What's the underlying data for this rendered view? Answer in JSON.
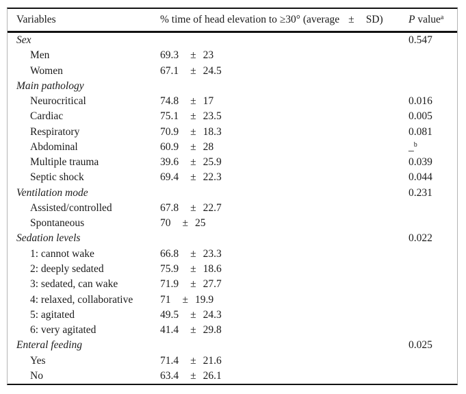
{
  "table": {
    "pm_symbol": "±",
    "header": {
      "variables": "Variables",
      "value_col": "% time of head elevation to ≥30° (average",
      "pm": "±",
      "sd_close": "SD)",
      "p_label_italic": "P",
      "p_label_rest": "value",
      "p_sup": "a"
    },
    "rows": [
      {
        "label": "Sex",
        "type": "category",
        "p": "0.547"
      },
      {
        "label": "Men",
        "type": "item",
        "mean": "69.3",
        "sd": "23"
      },
      {
        "label": "Women",
        "type": "item",
        "mean": "67.1",
        "sd": "24.5"
      },
      {
        "label": "Main pathology",
        "type": "category"
      },
      {
        "label": "Neurocritical",
        "type": "item",
        "mean": "74.8",
        "sd": "17",
        "p": "0.016"
      },
      {
        "label": "Cardiac",
        "type": "item",
        "mean": "75.1",
        "sd": "23.5",
        "p": "0.005"
      },
      {
        "label": "Respiratory",
        "type": "item",
        "mean": "70.9",
        "sd": "18.3",
        "p": "0.081"
      },
      {
        "label": "Abdominal",
        "type": "item",
        "mean": "60.9",
        "sd": "28",
        "p": "_",
        "p_sup": "b"
      },
      {
        "label": "Multiple trauma",
        "type": "item",
        "mean": "39.6",
        "sd": "25.9",
        "p": "0.039"
      },
      {
        "label": "Septic shock",
        "type": "item",
        "mean": "69.4",
        "sd": "22.3",
        "p": "0.044"
      },
      {
        "label": "Ventilation mode",
        "type": "category",
        "p": "0.231"
      },
      {
        "label": "Assisted/controlled",
        "type": "item",
        "mean": "67.8",
        "sd": "22.7"
      },
      {
        "label": "Spontaneous",
        "type": "item",
        "mean": "70",
        "sd": "25"
      },
      {
        "label": "Sedation levels",
        "type": "category",
        "p": "0.022"
      },
      {
        "label": "1: cannot wake",
        "type": "item",
        "mean": "66.8",
        "sd": "23.3"
      },
      {
        "label": "2: deeply sedated",
        "type": "item",
        "mean": "75.9",
        "sd": "18.6"
      },
      {
        "label": "3: sedated, can wake",
        "type": "item",
        "mean": "71.9",
        "sd": "27.7"
      },
      {
        "label": "4: relaxed, collaborative",
        "type": "item",
        "mean": "71",
        "sd": "19.9"
      },
      {
        "label": "5: agitated",
        "type": "item",
        "mean": "49.5",
        "sd": "24.3"
      },
      {
        "label": "6: very agitated",
        "type": "item",
        "mean": "41.4",
        "sd": "29.8"
      },
      {
        "label": "Enteral feeding",
        "type": "category",
        "p": "0.025"
      },
      {
        "label": "Yes",
        "type": "item",
        "mean": "71.4",
        "sd": "21.6"
      },
      {
        "label": "No",
        "type": "item",
        "mean": "63.4",
        "sd": "26.1"
      }
    ]
  },
  "colors": {
    "text": "#1a1a1a",
    "rule_heavy": "#121212",
    "rule_light": "#b4b4b4",
    "background": "#ffffff"
  }
}
